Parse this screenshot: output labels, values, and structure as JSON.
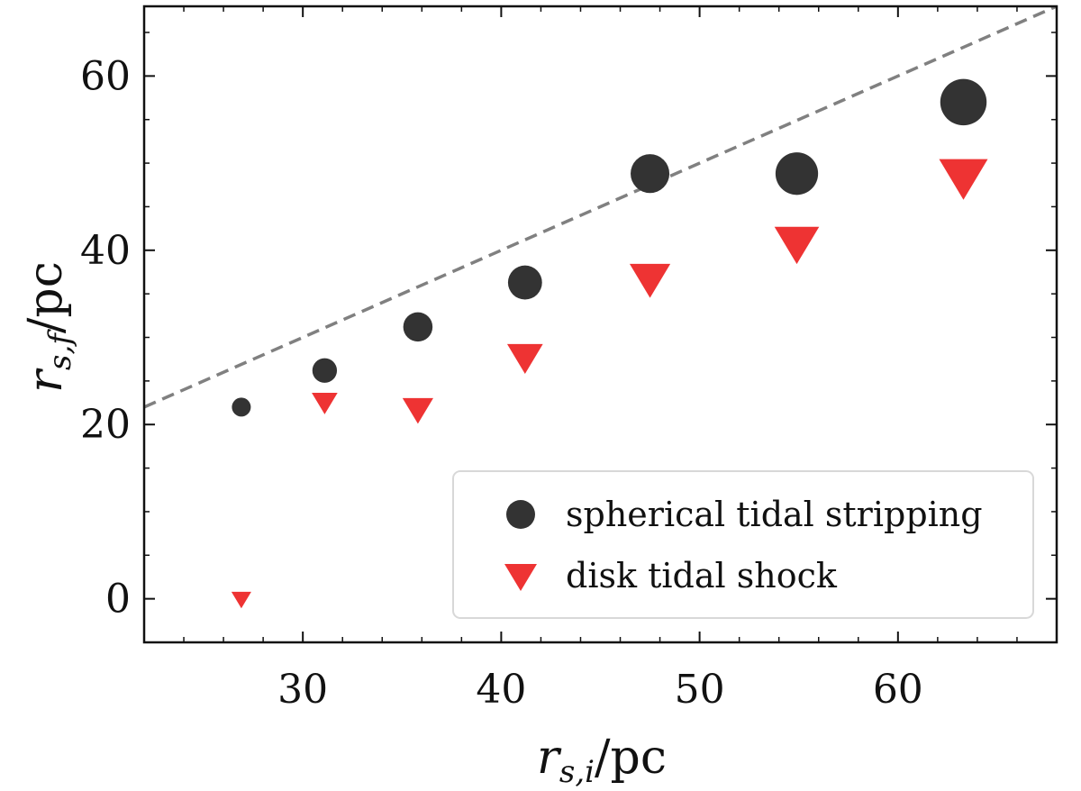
{
  "chart_data": {
    "type": "scatter",
    "title": "",
    "xlabel": "r_{s,i}/pc",
    "ylabel": "r_{s,f}/pc",
    "xlabel_parts": {
      "base": "r",
      "sub": "s,i",
      "tail": "/pc"
    },
    "ylabel_parts": {
      "base": "r",
      "sub": "s,f",
      "tail": "/pc"
    },
    "xlim": [
      22,
      68
    ],
    "ylim": [
      -5,
      68
    ],
    "xticks": [
      30,
      40,
      50,
      60
    ],
    "yticks": [
      0,
      20,
      40,
      60
    ],
    "xtick_labels": [
      "30",
      "40",
      "50",
      "60"
    ],
    "ytick_labels": [
      "0",
      "20",
      "40",
      "60"
    ],
    "grid": false,
    "legend_position": "lower-right",
    "reference_line": {
      "name": "one-to-one",
      "x": [
        22,
        68
      ],
      "y": [
        22,
        68
      ],
      "color": "#808080",
      "style": "dashed"
    },
    "series": [
      {
        "name": "spherical tidal stripping",
        "marker": "circle",
        "color": "#333333",
        "x": [
          26.9,
          31.1,
          35.8,
          41.2,
          47.5,
          54.9,
          63.3
        ],
        "y": [
          22.0,
          26.2,
          31.2,
          36.3,
          48.8,
          48.8,
          57.0
        ],
        "relative_size": [
          1,
          1.3,
          1.55,
          1.8,
          2.05,
          2.25,
          2.45
        ]
      },
      {
        "name": "disk tidal shock",
        "marker": "triangle-down",
        "color": "#ee3333",
        "x": [
          26.9,
          31.1,
          35.8,
          41.2,
          47.5,
          54.9,
          63.3
        ],
        "y": [
          0.0,
          22.6,
          21.8,
          27.8,
          36.8,
          40.9,
          48.5
        ],
        "relative_size": [
          1,
          1.3,
          1.55,
          1.8,
          2.05,
          2.25,
          2.45
        ]
      }
    ]
  }
}
